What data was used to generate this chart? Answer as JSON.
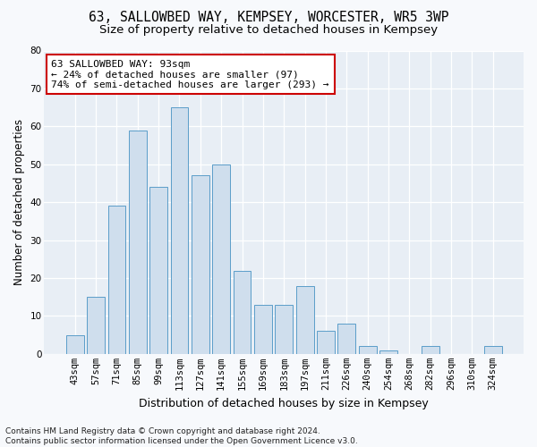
{
  "title": "63, SALLOWBED WAY, KEMPSEY, WORCESTER, WR5 3WP",
  "subtitle": "Size of property relative to detached houses in Kempsey",
  "xlabel": "Distribution of detached houses by size in Kempsey",
  "ylabel": "Number of detached properties",
  "bar_labels": [
    "43sqm",
    "57sqm",
    "71sqm",
    "85sqm",
    "99sqm",
    "113sqm",
    "127sqm",
    "141sqm",
    "155sqm",
    "169sqm",
    "183sqm",
    "197sqm",
    "211sqm",
    "226sqm",
    "240sqm",
    "254sqm",
    "268sqm",
    "282sqm",
    "296sqm",
    "310sqm",
    "324sqm"
  ],
  "bar_values": [
    5,
    15,
    39,
    59,
    44,
    65,
    47,
    50,
    22,
    13,
    13,
    18,
    6,
    8,
    2,
    1,
    0,
    2,
    0,
    0,
    2
  ],
  "bar_color": "#cfdeed",
  "bar_edge_color": "#5b9dc9",
  "annotation_text": "63 SALLOWBED WAY: 93sqm\n← 24% of detached houses are smaller (97)\n74% of semi-detached houses are larger (293) →",
  "annotation_box_facecolor": "#ffffff",
  "annotation_box_edgecolor": "#cc0000",
  "ylim": [
    0,
    80
  ],
  "yticks": [
    0,
    10,
    20,
    30,
    40,
    50,
    60,
    70,
    80
  ],
  "footer_text": "Contains HM Land Registry data © Crown copyright and database right 2024.\nContains public sector information licensed under the Open Government Licence v3.0.",
  "fig_facecolor": "#f7f9fc",
  "plot_facecolor": "#e8eef5",
  "grid_color": "#ffffff",
  "title_fontsize": 10.5,
  "subtitle_fontsize": 9.5,
  "ylabel_fontsize": 8.5,
  "xlabel_fontsize": 9,
  "tick_fontsize": 7.5,
  "annot_fontsize": 8,
  "footer_fontsize": 6.5
}
